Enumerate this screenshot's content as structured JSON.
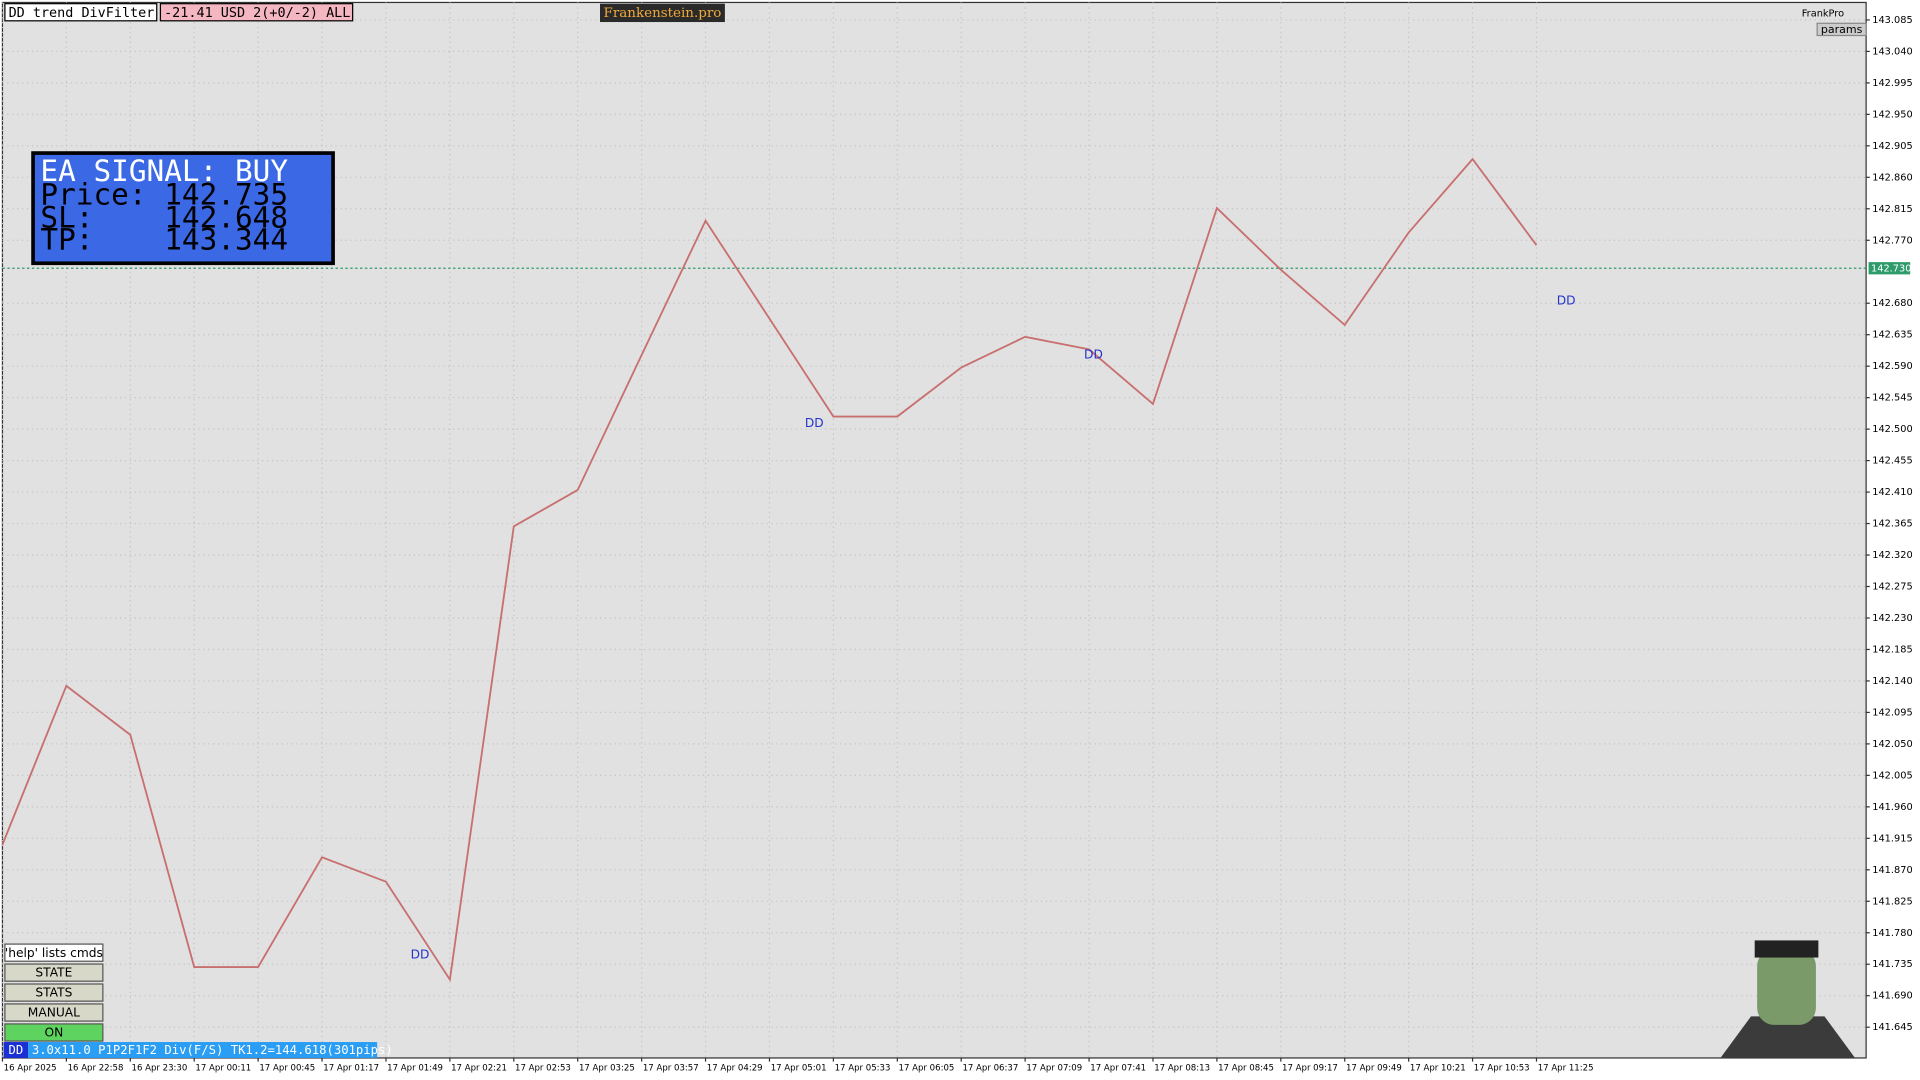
{
  "header": {
    "indicator": "DD trend DivFilter",
    "account": "-21.41 USD 2(+0/-2) ALL",
    "brand": "Frankenstein.pro",
    "user": "FrankPro",
    "params": "params"
  },
  "signal": {
    "title": "EA SIGNAL: BUY",
    "price": "Price: 142.735",
    "sl": "SL:    142.648",
    "tp": "TP:    143.344"
  },
  "buttons": [
    "'help' lists cmds",
    "STATE",
    "STATS",
    "MANUAL",
    "ON"
  ],
  "status": {
    "tag": "DD",
    "text": "3.0x11.0 P1P2F1F2 Div(F/S) TK1.2=144.618(301pips)"
  },
  "chart_data": {
    "type": "line",
    "categories": [
      "16 Apr 2025",
      "16 Apr 22:58",
      "16 Apr 23:30",
      "17 Apr 00:11",
      "17 Apr 00:45",
      "17 Apr 01:17",
      "17 Apr 01:49",
      "17 Apr 02:21",
      "17 Apr 02:53",
      "17 Apr 03:25",
      "17 Apr 03:57",
      "17 Apr 04:29",
      "17 Apr 05:01",
      "17 Apr 05:33",
      "17 Apr 06:05",
      "17 Apr 06:37",
      "17 Apr 07:09",
      "17 Apr 07:41",
      "17 Apr 08:13",
      "17 Apr 08:45",
      "17 Apr 09:17",
      "17 Apr 09:49",
      "17 Apr 10:21",
      "17 Apr 10:53",
      "17 Apr 11:25"
    ],
    "values": [
      141.906,
      142.133,
      142.063,
      141.731,
      141.731,
      141.888,
      141.853,
      141.713,
      142.361,
      142.413,
      142.606,
      142.798,
      142.658,
      142.518,
      142.518,
      142.588,
      142.632,
      142.614,
      142.536,
      142.816,
      142.728,
      142.649,
      142.781,
      142.886,
      142.763
    ],
    "color": "#c87070",
    "ylim": [
      141.601,
      143.11
    ],
    "yticks": [
      143.085,
      {
        "value": 143.04,
        "label": "143.040"
      },
      142.995,
      {
        "value": 142.95,
        "label": "142.950"
      },
      142.905,
      {
        "value": 142.86,
        "label": "142.860"
      },
      142.815,
      {
        "value": 142.77,
        "label": "142.770"
      },
      {
        "value": 142.68,
        "label": "142.680"
      },
      142.635,
      {
        "value": 142.59,
        "label": "142.590"
      },
      142.545,
      {
        "value": 142.5,
        "label": "142.500"
      },
      142.455,
      {
        "value": 142.41,
        "label": "142.410"
      },
      142.365,
      {
        "value": 142.32,
        "label": "142.320"
      },
      142.275,
      {
        "value": 142.23,
        "label": "142.230"
      },
      142.185,
      {
        "value": 142.14,
        "label": "142.140"
      },
      142.095,
      {
        "value": 142.05,
        "label": "142.050"
      },
      142.005,
      {
        "value": 141.96,
        "label": "141.960"
      },
      141.915,
      {
        "value": 141.87,
        "label": "141.870"
      },
      141.825,
      {
        "value": 141.78,
        "label": "141.780"
      },
      141.735,
      {
        "value": 141.69,
        "label": "141.690"
      },
      141.645
    ],
    "current_price": {
      "value": 142.73,
      "label": "142.730"
    },
    "annotations": [
      "DD",
      "DD",
      "DD",
      "DD"
    ],
    "grid": true
  }
}
